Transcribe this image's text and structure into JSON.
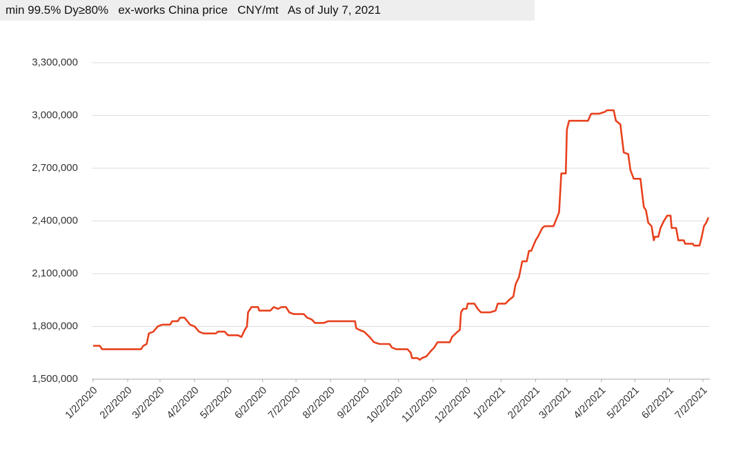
{
  "chart_data": {
    "type": "line",
    "title": "min 99.5% Dy≥80%   ex-works China price   CNY/mt   As of July 7, 2021",
    "x": [
      "1/2/2020",
      "1/8/2020",
      "1/10/2020",
      "2/14/2020",
      "2/16/2020",
      "2/19/2020",
      "2/21/2020",
      "2/25/2020",
      "2/29/2020",
      "3/4/2020",
      "3/11/2020",
      "3/13/2020",
      "3/18/2020",
      "3/20/2020",
      "3/24/2020",
      "3/29/2020",
      "4/2/2020",
      "4/6/2020",
      "4/10/2020",
      "4/21/2020",
      "4/23/2020",
      "4/29/2020",
      "5/2/2020",
      "5/11/2020",
      "5/14/2020",
      "5/17/2020",
      "5/19/2020",
      "5/20/2020",
      "5/23/2020",
      "5/29/2020",
      "5/30/2020",
      "6/9/2020",
      "6/12/2020",
      "6/16/2020",
      "6/19/2020",
      "6/23/2020",
      "6/26/2020",
      "6/30/2020",
      "7/9/2020",
      "7/12/2020",
      "7/16/2020",
      "7/19/2020",
      "7/27/2020",
      "7/31/2020",
      "8/24/2020",
      "8/25/2020",
      "8/28/2020",
      "9/1/2020",
      "9/6/2020",
      "9/10/2020",
      "9/15/2020",
      "9/24/2020",
      "9/26/2020",
      "9/30/2020",
      "10/10/2020",
      "10/13/2020",
      "10/14/2020",
      "10/19/2020",
      "10/21/2020",
      "10/23/2020",
      "10/27/2020",
      "10/31/2020",
      "11/3/2020",
      "11/6/2020",
      "11/17/2020",
      "11/19/2020",
      "11/24/2020",
      "11/26/2020",
      "11/27/2020",
      "11/29/2020",
      "12/2/2020",
      "12/3/2020",
      "12/9/2020",
      "12/12/2020",
      "12/15/2020",
      "12/23/2020",
      "12/28/2020",
      "12/30/2020",
      "1/6/2021",
      "1/9/2021",
      "1/13/2021",
      "1/15/2021",
      "1/18/2021",
      "1/21/2021",
      "1/25/2021",
      "1/27/2021",
      "1/29/2021",
      "2/2/2021",
      "2/4/2021",
      "2/8/2021",
      "2/10/2021",
      "2/18/2021",
      "2/23/2021",
      "2/25/2021",
      "3/1/2021",
      "3/2/2021",
      "3/4/2021",
      "3/21/2021",
      "3/23/2021",
      "3/24/2021",
      "3/31/2021",
      "4/5/2021",
      "4/7/2021",
      "4/13/2021",
      "4/15/2021",
      "4/19/2021",
      "4/22/2021",
      "4/26/2021",
      "4/28/2021",
      "5/1/2021",
      "5/7/2021",
      "5/10/2021",
      "5/12/2021",
      "5/14/2021",
      "5/17/2021",
      "5/19/2021",
      "5/20/2021",
      "5/23/2021",
      "5/25/2021",
      "5/28/2021",
      "5/31/2021",
      "6/3/2021",
      "6/4/2021",
      "6/8/2021",
      "6/10/2021",
      "6/15/2021",
      "6/16/2021",
      "6/23/2021",
      "6/24/2021",
      "6/29/2021",
      "7/1/2021",
      "7/3/2021",
      "7/5/2021",
      "7/7/2021"
    ],
    "series": [
      {
        "name": "price",
        "color": "#e8401c",
        "values": [
          1690000,
          1690000,
          1670000,
          1670000,
          1690000,
          1700000,
          1760000,
          1770000,
          1800000,
          1810000,
          1810000,
          1830000,
          1830000,
          1850000,
          1850000,
          1810000,
          1800000,
          1770000,
          1760000,
          1760000,
          1770000,
          1770000,
          1750000,
          1750000,
          1740000,
          1780000,
          1800000,
          1880000,
          1910000,
          1910000,
          1890000,
          1890000,
          1910000,
          1900000,
          1910000,
          1910000,
          1880000,
          1870000,
          1870000,
          1850000,
          1840000,
          1820000,
          1820000,
          1830000,
          1830000,
          1790000,
          1780000,
          1770000,
          1740000,
          1710000,
          1700000,
          1700000,
          1680000,
          1670000,
          1670000,
          1650000,
          1620000,
          1620000,
          1610000,
          1620000,
          1630000,
          1660000,
          1680000,
          1710000,
          1710000,
          1740000,
          1770000,
          1780000,
          1880000,
          1900000,
          1900000,
          1930000,
          1930000,
          1900000,
          1880000,
          1880000,
          1890000,
          1930000,
          1930000,
          1950000,
          1970000,
          2040000,
          2080000,
          2170000,
          2170000,
          2230000,
          2230000,
          2290000,
          2310000,
          2360000,
          2370000,
          2370000,
          2450000,
          2670000,
          2670000,
          2920000,
          2970000,
          2970000,
          3000000,
          3010000,
          3010000,
          3020000,
          3030000,
          3030000,
          2970000,
          2950000,
          2790000,
          2780000,
          2690000,
          2640000,
          2640000,
          2480000,
          2460000,
          2390000,
          2370000,
          2290000,
          2310000,
          2310000,
          2360000,
          2400000,
          2430000,
          2430000,
          2360000,
          2360000,
          2290000,
          2290000,
          2270000,
          2270000,
          2260000,
          2260000,
          2310000,
          2370000,
          2390000,
          2420000
        ]
      }
    ],
    "xlim": [
      "1/2/2020",
      "7/7/2021"
    ],
    "xticks": [
      "1/2/2020",
      "2/2/2020",
      "3/2/2020",
      "4/2/2020",
      "5/2/2020",
      "6/2/2020",
      "7/2/2020",
      "8/2/2020",
      "9/2/2020",
      "10/2/2020",
      "11/2/2020",
      "12/2/2020",
      "1/2/2021",
      "2/2/2021",
      "3/2/2021",
      "4/2/2021",
      "5/2/2021",
      "6/2/2021",
      "7/2/2021"
    ],
    "ylim": [
      1500000,
      3300000
    ],
    "yticks": [
      {
        "value": 1500000,
        "label": "1,500,000"
      },
      {
        "value": 1800000,
        "label": "1,800,000"
      },
      {
        "value": 2100000,
        "label": "2,100,000"
      },
      {
        "value": 2400000,
        "label": "2,400,000"
      },
      {
        "value": 2700000,
        "label": "2,700,000"
      },
      {
        "value": 3000000,
        "label": "3,000,000"
      },
      {
        "value": 3300000,
        "label": "3,300,000"
      }
    ],
    "grid": true
  }
}
